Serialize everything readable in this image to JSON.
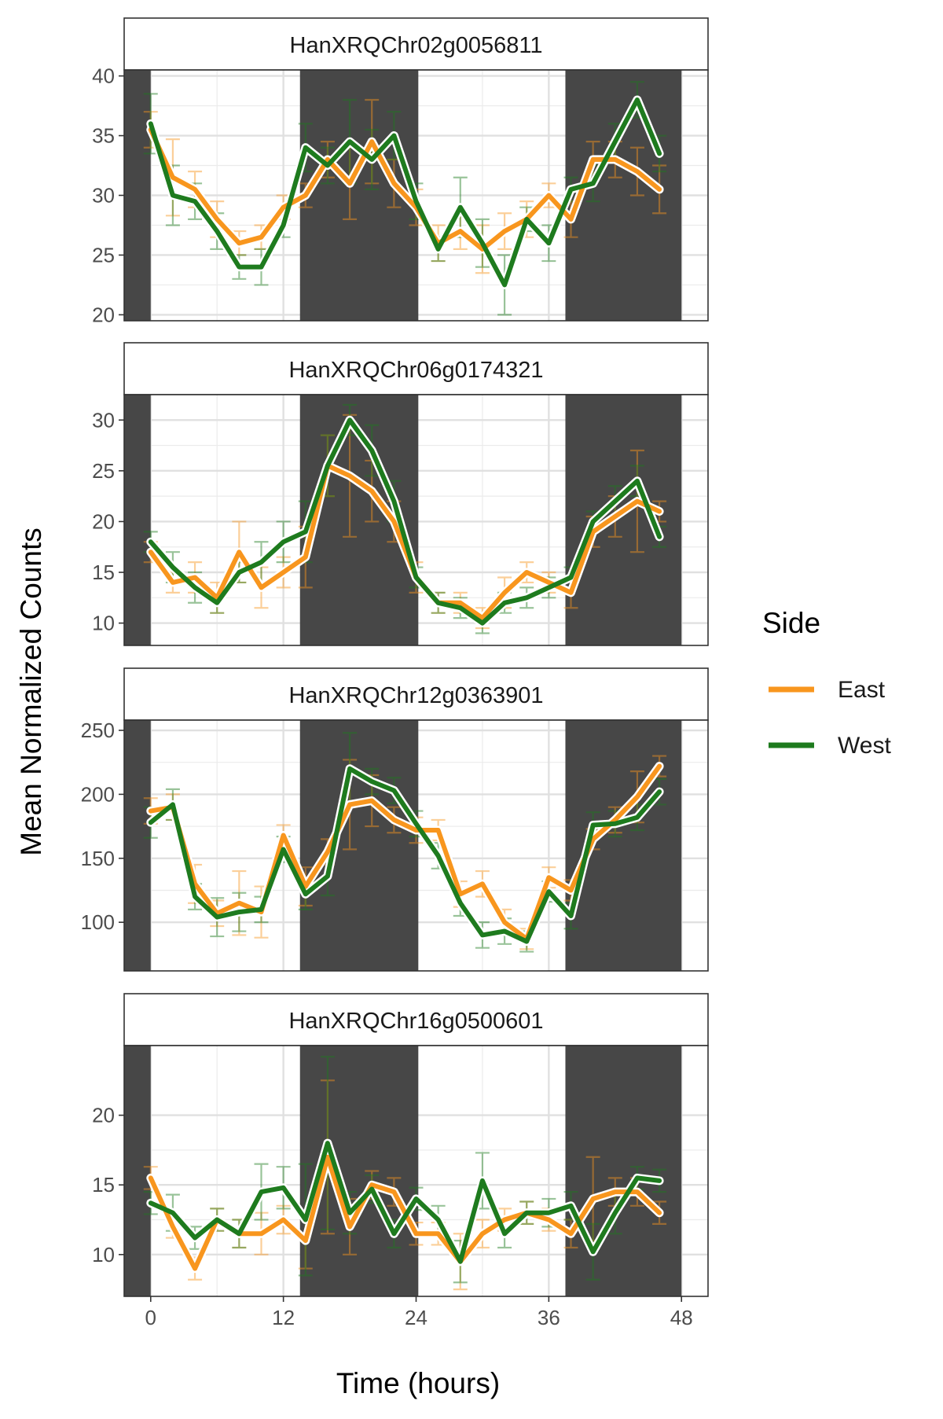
{
  "chart_data": {
    "type": "line",
    "xlabel": "Time (hours)",
    "ylabel": "Mean Normalized Counts",
    "x_ticks": [
      0,
      12,
      24,
      36,
      48
    ],
    "xlim": [
      -2.4,
      50.4
    ],
    "dark_periods": [
      [
        -2.4,
        0
      ],
      [
        13.5,
        24.2
      ],
      [
        37.5,
        48
      ]
    ],
    "legend": {
      "title": "Side",
      "position": "right",
      "entries": [
        {
          "name": "East",
          "color": "#F8961E"
        },
        {
          "name": "West",
          "color": "#1E7B1E"
        }
      ]
    },
    "x": [
      0,
      2,
      4,
      6,
      8,
      10,
      12,
      14,
      16,
      18,
      20,
      22,
      24,
      26,
      28,
      30,
      32,
      34,
      36,
      38,
      40,
      42,
      44,
      46
    ],
    "panels": [
      {
        "title": "HanXRQChr02g0056811",
        "ylim": [
          19.5,
          40.5
        ],
        "y_ticks": [
          20,
          25,
          30,
          35,
          40
        ],
        "series": [
          {
            "name": "East",
            "values": [
              35.5,
              31.5,
              30.5,
              28,
              26,
              26.5,
              29,
              30,
              33,
              31,
              34.5,
              31,
              29,
              26,
              27,
              25.5,
              27,
              28,
              30,
              28,
              33,
              33,
              32,
              30.5
            ],
            "errors": [
              1.5,
              3.2,
              1.5,
              1.5,
              1,
              1,
              1,
              1,
              1.5,
              3,
              3.5,
              2,
              1.5,
              1.5,
              1.5,
              2,
              1.5,
              1.5,
              1,
              1.5,
              1.5,
              1.5,
              2,
              2
            ]
          },
          {
            "name": "West",
            "values": [
              36,
              30,
              29.5,
              27,
              24,
              24,
              27.5,
              34,
              32.5,
              34.5,
              33,
              35,
              29.5,
              25.5,
              29,
              26,
              22.5,
              28,
              26,
              30.5,
              31,
              34.5,
              38,
              33.5
            ],
            "errors": [
              2.5,
              2.5,
              1.5,
              1.5,
              1,
              1.5,
              1,
              2,
              1.5,
              3.5,
              2.5,
              2,
              1.5,
              1,
              2.5,
              2,
              2.5,
              1,
              1.5,
              1,
              1.5,
              1.5,
              1.5,
              1.5
            ]
          }
        ]
      },
      {
        "title": "HanXRQChr06g0174321",
        "ylim": [
          7.8,
          32.5
        ],
        "y_ticks": [
          10,
          15,
          20,
          25,
          30
        ],
        "series": [
          {
            "name": "East",
            "values": [
              17,
              14,
              14.5,
              12.5,
              17,
              13.5,
              15,
              16.5,
              25.5,
              24.5,
              23,
              20,
              14.5,
              12,
              12,
              10.5,
              13,
              15,
              14,
              13,
              19,
              20.5,
              22,
              21
            ],
            "errors": [
              1,
              1,
              1.5,
              1.5,
              3,
              2,
              1.5,
              3,
              3,
              6,
              3,
              2,
              1.5,
              1,
              1,
              1,
              1.5,
              1,
              1,
              1.5,
              1.5,
              2,
              5,
              1
            ]
          },
          {
            "name": "West",
            "values": [
              18,
              15.5,
              13.5,
              12,
              15,
              16,
              18,
              19,
              25.5,
              30,
              27,
              22,
              14.5,
              12,
              11.5,
              10,
              12,
              12.5,
              13.5,
              14.5,
              20,
              22,
              24,
              18.5
            ],
            "errors": [
              1,
              1.5,
              1.5,
              1,
              1,
              2,
              2,
              3,
              3,
              1.5,
              2.5,
              2,
              1,
              1,
              1,
              1,
              1,
              1,
              1,
              1,
              1,
              1.5,
              1.5,
              1
            ]
          }
        ]
      },
      {
        "title": "HanXRQChr12g0363901",
        "ylim": [
          62,
          258
        ],
        "y_ticks": [
          100,
          150,
          200,
          250
        ],
        "series": [
          {
            "name": "East",
            "values": [
              187,
              190,
              130,
              107,
              115,
              108,
              168,
              128,
              155,
              192,
              195,
              180,
              172,
              172,
              122,
              130,
              100,
              87,
              135,
              125,
              165,
              180,
              198,
              222
            ],
            "errors": [
              10,
              10,
              15,
              10,
              25,
              20,
              8,
              15,
              10,
              35,
              20,
              10,
              10,
              8,
              10,
              10,
              10,
              8,
              8,
              8,
              8,
              10,
              20,
              8
            ]
          },
          {
            "name": "West",
            "values": [
              178,
              192,
              120,
              104,
              108,
              110,
              157,
              122,
              136,
              220,
              210,
              203,
              177,
              152,
              115,
              90,
              93,
              85,
              124,
              105,
              176,
              177,
              182,
              202
            ],
            "errors": [
              12,
              12,
              10,
              15,
              15,
              10,
              10,
              12,
              15,
              28,
              10,
              10,
              10,
              10,
              10,
              10,
              10,
              8,
              8,
              10,
              10,
              10,
              10,
              10
            ]
          }
        ]
      },
      {
        "title": "HanXRQChr16g0500601",
        "ylim": [
          7,
          25
        ],
        "y_ticks": [
          10,
          15,
          20
        ],
        "series": [
          {
            "name": "East",
            "values": [
              15.5,
              12,
              9,
              12.5,
              11.5,
              11.5,
              12.5,
              11,
              17,
              12,
              15,
              14.5,
              11.5,
              11.5,
              9.5,
              11.5,
              12.5,
              13,
              12.5,
              11.5,
              14,
              14.5,
              14.5,
              13
            ],
            "errors": [
              0.8,
              0.8,
              0.8,
              0.8,
              1,
              1.5,
              1,
              2,
              5.5,
              2,
              1,
              1,
              0.8,
              0.8,
              2,
              1,
              0.8,
              0.8,
              0.8,
              1,
              3,
              1,
              1,
              0.8
            ]
          },
          {
            "name": "West",
            "values": [
              13.7,
              13,
              11.2,
              12.5,
              11.5,
              14.5,
              14.8,
              12.5,
              18,
              13,
              14.7,
              11.5,
              14,
              12.5,
              9.5,
              15.3,
              11.5,
              13,
              13,
              13.5,
              10.2,
              13,
              15.5,
              15.3
            ],
            "errors": [
              0.8,
              1.3,
              0.8,
              0.8,
              1,
              2,
              1.5,
              4,
              6.2,
              1.5,
              1,
              1,
              0.8,
              1,
              1.5,
              2,
              1,
              0.8,
              1,
              1,
              2,
              1.5,
              0.8,
              0.8
            ]
          }
        ]
      }
    ]
  }
}
